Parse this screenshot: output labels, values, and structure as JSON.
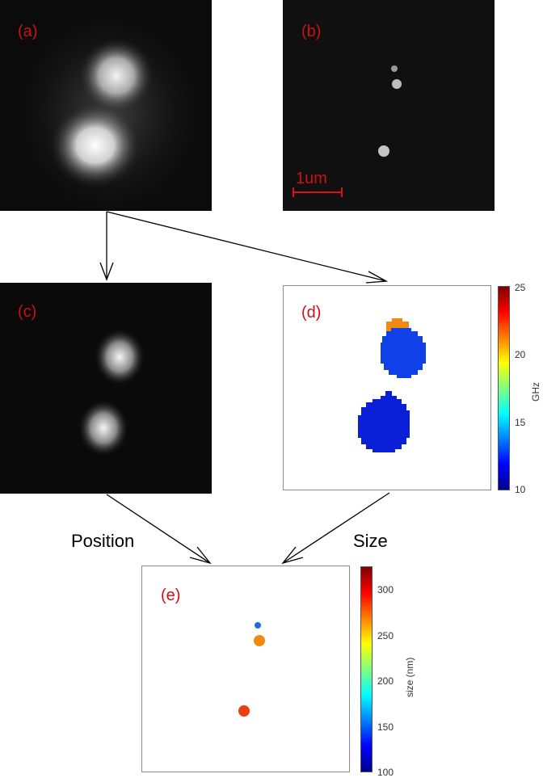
{
  "panels": {
    "a": {
      "label": "(a)"
    },
    "b": {
      "label": "(b)",
      "scale_bar_label": "1um"
    },
    "c": {
      "label": "(c)"
    },
    "d": {
      "label": "(d)",
      "colorbar": {
        "unit": "GHz",
        "ticks": [
          "25",
          "20",
          "15",
          "10"
        ],
        "range": [
          10,
          25
        ]
      }
    },
    "e": {
      "label": "(e)",
      "colorbar": {
        "unit": "size (nm)",
        "ticks": [
          "300",
          "250",
          "200",
          "150",
          "100"
        ],
        "range": [
          100,
          325
        ]
      }
    }
  },
  "flow_labels": {
    "position": "Position",
    "size": "Size"
  },
  "colors": {
    "panel_label": "#cc1111",
    "orange": "#f08a10",
    "blue": "#1040e8",
    "dark_blue": "#0a20d8",
    "red": "#e84010",
    "small_blue": "#1a6ee0"
  }
}
